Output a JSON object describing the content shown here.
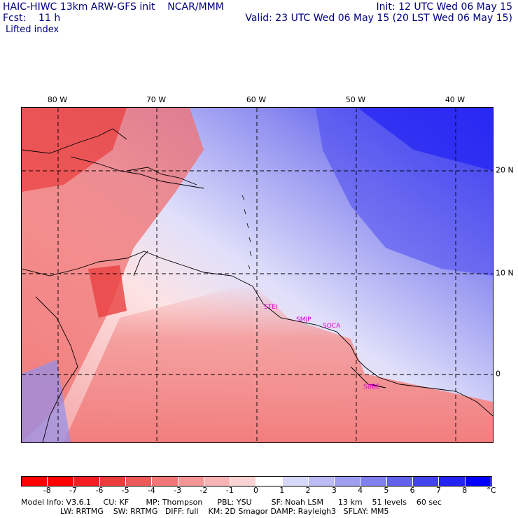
{
  "header": {
    "line1_left": "HAIC-HIWC 13km ARW-GFS init    NCAR/MMM",
    "line1_right": "Init: 12 UTC Wed 06 May 15",
    "line2_left": "Fcst:    11 h",
    "line2_right": "Valid: 23 UTC Wed 06 May 15 (20 LST Wed 06 May 15)",
    "field_name": "Lifted index"
  },
  "lon_labels": [
    "80 W",
    "70 W",
    "60 W",
    "50 W",
    "40 W"
  ],
  "lat_labels": [
    "20 N",
    "10 N",
    "0"
  ],
  "stations": [
    "STEI",
    "SMJP",
    "SOCA",
    "SBBE"
  ],
  "colorbar": {
    "ticks": [
      "-8",
      "-7",
      "-6",
      "-5",
      "-4",
      "-3",
      "-2",
      "-1",
      "0",
      "1",
      "2",
      "3",
      "4",
      "5",
      "6",
      "7",
      "8"
    ],
    "unit": "°C",
    "colors": [
      "#ff0000",
      "#f51d22",
      "#ec3b3b",
      "#ee5a5a",
      "#f27878",
      "#f59696",
      "#f7b4b4",
      "#fad3d3",
      "#ffffff",
      "#d8d8fa",
      "#bcbcf5",
      "#9e9ef0",
      "#8080ee",
      "#6262ec",
      "#4444ee",
      "#2222f3",
      "#0000ff"
    ]
  },
  "footer": {
    "line1": "Model Info: V3.6.1     CU: KF       MP: Thompson      PBL: YSU        SF: Noah LSM      13 km    51 levels    60 sec",
    "line2": "                LW: RRTMG    SW: RRTMG   DIFF: full    KM: 2D Smagor DAMP: Rayleigh3   SFLAY: MM5"
  }
}
